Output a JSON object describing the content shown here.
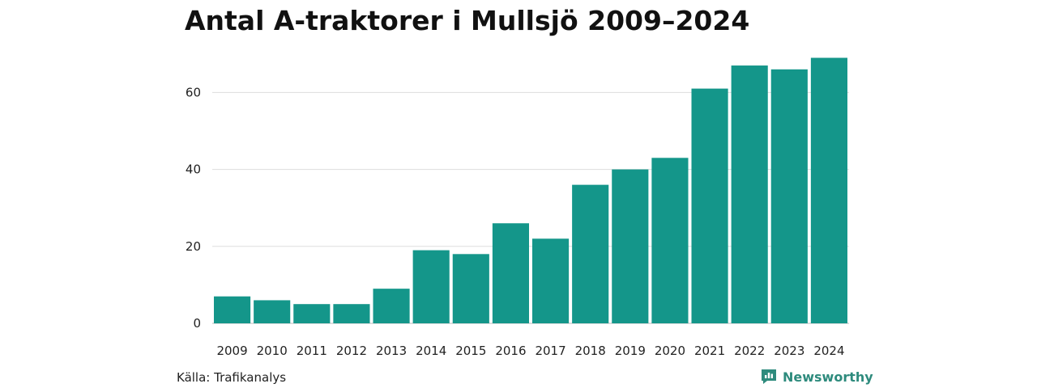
{
  "header": {
    "title": "Antal A-traktorer i Mullsjö 2009–2024"
  },
  "footer": {
    "source": "Källa: Trafikanalys",
    "brand": "Newsworthy"
  },
  "colors": {
    "bar": "#14968a",
    "grid": "#dddddd",
    "brand": "#2e8b7d"
  },
  "chart_data": {
    "type": "bar",
    "title": "Antal A-traktorer i Mullsjö 2009–2024",
    "xlabel": "",
    "ylabel": "",
    "categories": [
      "2009",
      "2010",
      "2011",
      "2012",
      "2013",
      "2014",
      "2015",
      "2016",
      "2017",
      "2018",
      "2019",
      "2020",
      "2021",
      "2022",
      "2023",
      "2024"
    ],
    "values": [
      7,
      6,
      5,
      5,
      9,
      19,
      18,
      26,
      22,
      36,
      40,
      43,
      61,
      67,
      66,
      69
    ],
    "ylim": [
      0,
      71
    ],
    "yticks": [
      0,
      20,
      40,
      60
    ],
    "grid": true,
    "legend": "none"
  }
}
